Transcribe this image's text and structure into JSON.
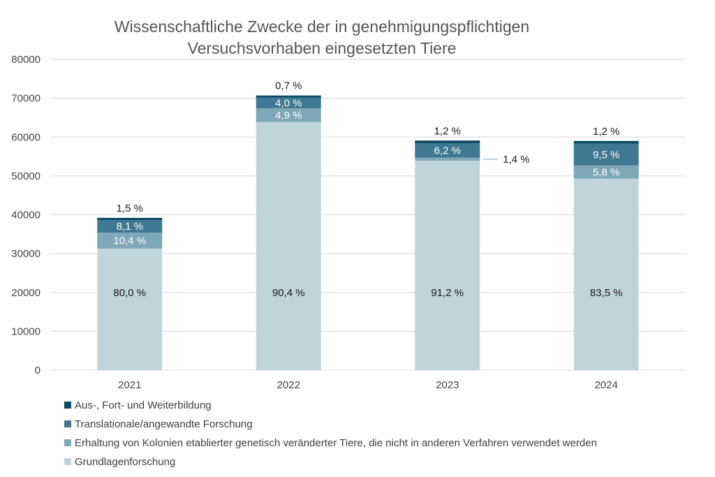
{
  "chart_data": {
    "type": "bar",
    "stacked": true,
    "title_lines": [
      "Wissenschaftliche Zwecke der in genehmigungspflichtigen",
      "Versuchsvorhaben eingesetzten Tiere"
    ],
    "xlabel": "",
    "ylabel": "",
    "ylim": [
      0,
      80000
    ],
    "yticks": [
      0,
      10000,
      20000,
      30000,
      40000,
      50000,
      60000,
      70000,
      80000
    ],
    "grid": true,
    "legend_position": "bottom",
    "categories": [
      "2021",
      "2022",
      "2023",
      "2024"
    ],
    "series": [
      {
        "name": "Grundlagenforschung",
        "color": "#c0d4dc",
        "values": [
          31300,
          63900,
          53900,
          49300
        ],
        "labels": [
          "80,0 %",
          "90,4 %",
          "91,2 %",
          "83,5 %"
        ]
      },
      {
        "name": "Erhaltung von Kolonien etablierter genetisch veränderter Tiere, die nicht in anderen Verfahren verwendet werden",
        "color": "#7ea7b8",
        "values": [
          4100,
          3500,
          800,
          3400
        ],
        "labels": [
          "10,4 %",
          "4,9 %",
          "1,4 %",
          "5,8 %"
        ]
      },
      {
        "name": "Translationale/angewandte Forschung",
        "color": "#3f7893",
        "values": [
          3200,
          2800,
          3700,
          5600
        ],
        "labels": [
          "8,1 %",
          "4,0 %",
          "6,2 %",
          "9,5 %"
        ]
      },
      {
        "name": "Aus-, Fort- und Weiterbildung",
        "color": "#0d4a66",
        "values": [
          600,
          500,
          700,
          700
        ],
        "labels": [
          "1,5 %",
          "0,7 %",
          "1,2 %",
          "1,2 %"
        ]
      }
    ]
  }
}
